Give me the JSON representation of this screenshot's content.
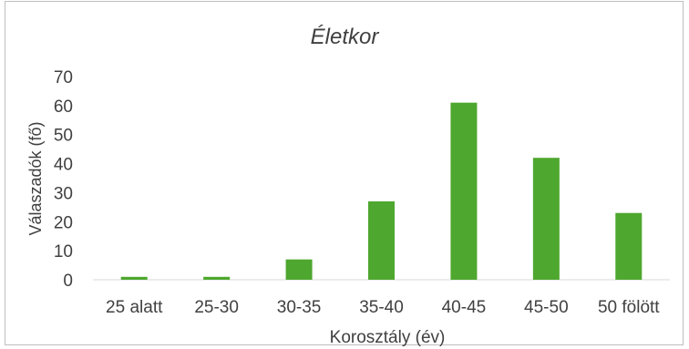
{
  "chart_data": {
    "type": "bar",
    "title": "Életkor",
    "xlabel": "Korosztály (év)",
    "ylabel": "Válaszadók (fő)",
    "categories": [
      "25 alatt",
      "25-30",
      "30-35",
      "35-40",
      "40-45",
      "45-50",
      "50 fölött"
    ],
    "values": [
      1,
      1,
      7,
      27,
      61,
      42,
      23
    ],
    "ylim": [
      0,
      70
    ],
    "yticks": [
      0,
      10,
      20,
      30,
      40,
      50,
      60,
      70
    ],
    "grid": false,
    "legend": "none",
    "bar_color": "#4ea72e"
  }
}
